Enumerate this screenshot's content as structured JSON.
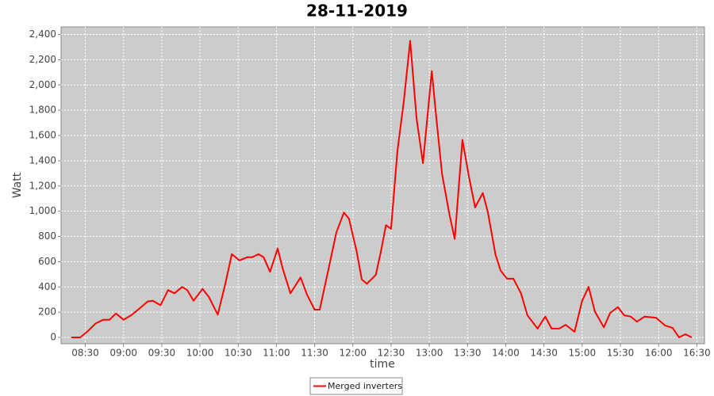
{
  "chart_data": {
    "type": "line",
    "title": "28-11-2019",
    "xlabel": "time",
    "ylabel": "Watt",
    "x": [
      "08:19",
      "08:26",
      "08:32",
      "08:38",
      "08:44",
      "08:49",
      "08:54",
      "09:00",
      "09:06",
      "09:12",
      "09:19",
      "09:23",
      "09:29",
      "09:35",
      "09:40",
      "09:46",
      "09:50",
      "09:55",
      "10:02",
      "10:07",
      "10:14",
      "10:20",
      "10:25",
      "10:31",
      "10:37",
      "10:41",
      "10:46",
      "10:50",
      "10:55",
      "11:01",
      "11:05",
      "11:11",
      "11:19",
      "11:24",
      "11:30",
      "11:34",
      "11:41",
      "11:47",
      "11:53",
      "11:57",
      "12:03",
      "12:07",
      "12:11",
      "12:18",
      "12:22",
      "12:26",
      "12:30",
      "12:35",
      "12:40",
      "12:45",
      "12:50",
      "12:55",
      "13:02",
      "13:05",
      "13:10",
      "13:16",
      "13:20",
      "13:26",
      "13:31",
      "13:36",
      "13:42",
      "13:46",
      "13:52",
      "13:56",
      "14:01",
      "14:06",
      "14:12",
      "14:17",
      "14:25",
      "14:31",
      "14:36",
      "14:42",
      "14:47",
      "14:54",
      "15:00",
      "15:05",
      "15:10",
      "15:17",
      "15:22",
      "15:28",
      "15:33",
      "15:38",
      "15:43",
      "15:49",
      "15:58",
      "16:05",
      "16:11",
      "16:16",
      "16:21",
      "16:26"
    ],
    "series": [
      {
        "name": "Merged inverters",
        "color": "#ff0000",
        "values": [
          0,
          0,
          50,
          110,
          140,
          140,
          190,
          140,
          175,
          225,
          285,
          290,
          255,
          375,
          350,
          400,
          375,
          290,
          385,
          320,
          180,
          430,
          660,
          610,
          635,
          635,
          660,
          635,
          520,
          705,
          545,
          350,
          475,
          340,
          220,
          220,
          545,
          830,
          990,
          940,
          680,
          460,
          425,
          495,
          680,
          890,
          860,
          1480,
          1870,
          2350,
          1735,
          1380,
          2110,
          1795,
          1295,
          965,
          780,
          1565,
          1280,
          1030,
          1145,
          990,
          655,
          530,
          465,
          465,
          350,
          175,
          70,
          165,
          70,
          70,
          100,
          45,
          290,
          400,
          205,
          80,
          195,
          240,
          175,
          165,
          125,
          165,
          155,
          95,
          75,
          0,
          25,
          0
        ]
      }
    ],
    "xlim": [
      "08:11",
      "16:36"
    ],
    "xticks": [
      "08:30",
      "09:00",
      "09:30",
      "10:00",
      "10:30",
      "11:00",
      "11:30",
      "12:00",
      "12:30",
      "13:00",
      "13:30",
      "14:00",
      "14:30",
      "15:00",
      "15:30",
      "16:00",
      "16:30"
    ],
    "ylim": [
      -50,
      2460
    ],
    "yticks": [
      0,
      200,
      400,
      600,
      800,
      {
        "value": 1000,
        "label": "1,000"
      },
      {
        "value": 1200,
        "label": "1,200"
      },
      {
        "value": 1400,
        "label": "1,400"
      },
      {
        "value": 1600,
        "label": "1,600"
      },
      {
        "value": 1800,
        "label": "1,800"
      },
      {
        "value": 2000,
        "label": "2,000"
      },
      {
        "value": 2200,
        "label": "2,200"
      },
      {
        "value": 2400,
        "label": "2,400"
      }
    ],
    "grid": true,
    "legend": "bottom"
  }
}
